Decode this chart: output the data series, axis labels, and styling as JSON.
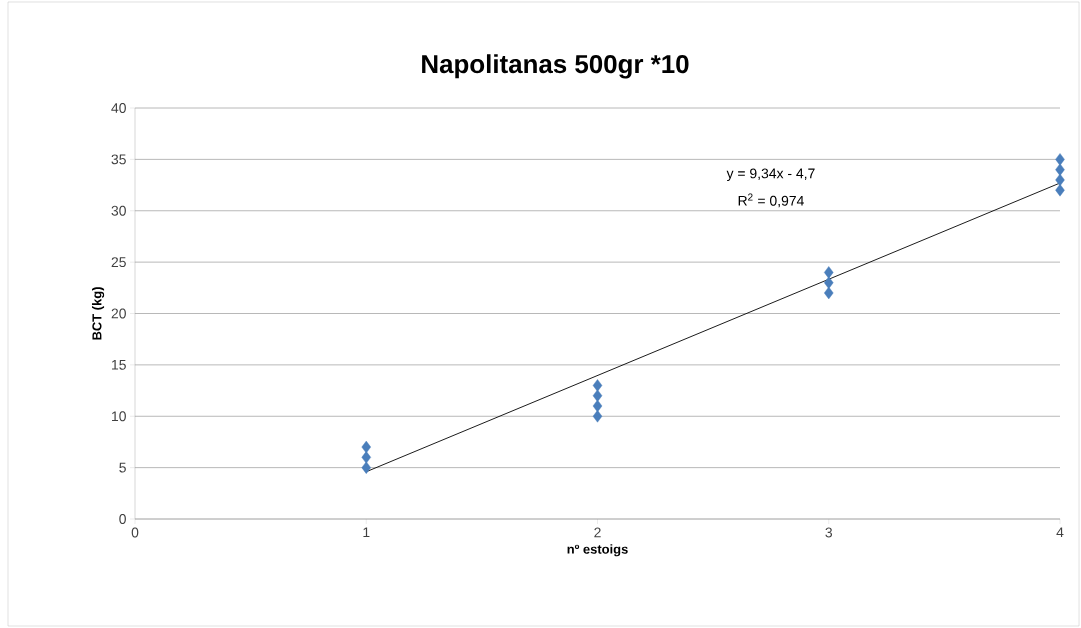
{
  "chart_data": {
    "type": "scatter",
    "title": "Napolitanas 500gr *10",
    "xlabel": "nº estoigs",
    "ylabel": "BCT (kg)",
    "xlim": [
      0,
      4
    ],
    "xticks": [
      0,
      1,
      2,
      3,
      4
    ],
    "ylim": [
      0,
      40
    ],
    "yticks": [
      0,
      5,
      10,
      15,
      20,
      25,
      30,
      35,
      40
    ],
    "grid": "y",
    "series": [
      {
        "marker": "diamond",
        "color": "#4a7ebb",
        "x": [
          1,
          1,
          1,
          2,
          2,
          2,
          2,
          3,
          3,
          3,
          4,
          4,
          4,
          4
        ],
        "values": [
          5,
          6,
          7,
          10,
          11,
          12,
          13,
          22,
          23,
          24,
          32,
          33,
          34,
          35
        ]
      },
      {
        "type": "line",
        "marker": "none",
        "color": "#000000",
        "x": [
          1,
          4
        ],
        "values": [
          4.6,
          32.7
        ]
      }
    ],
    "annotations": [
      "y = 9,34x - 4,7",
      "R$^{2}$ = 0,974"
    ]
  }
}
